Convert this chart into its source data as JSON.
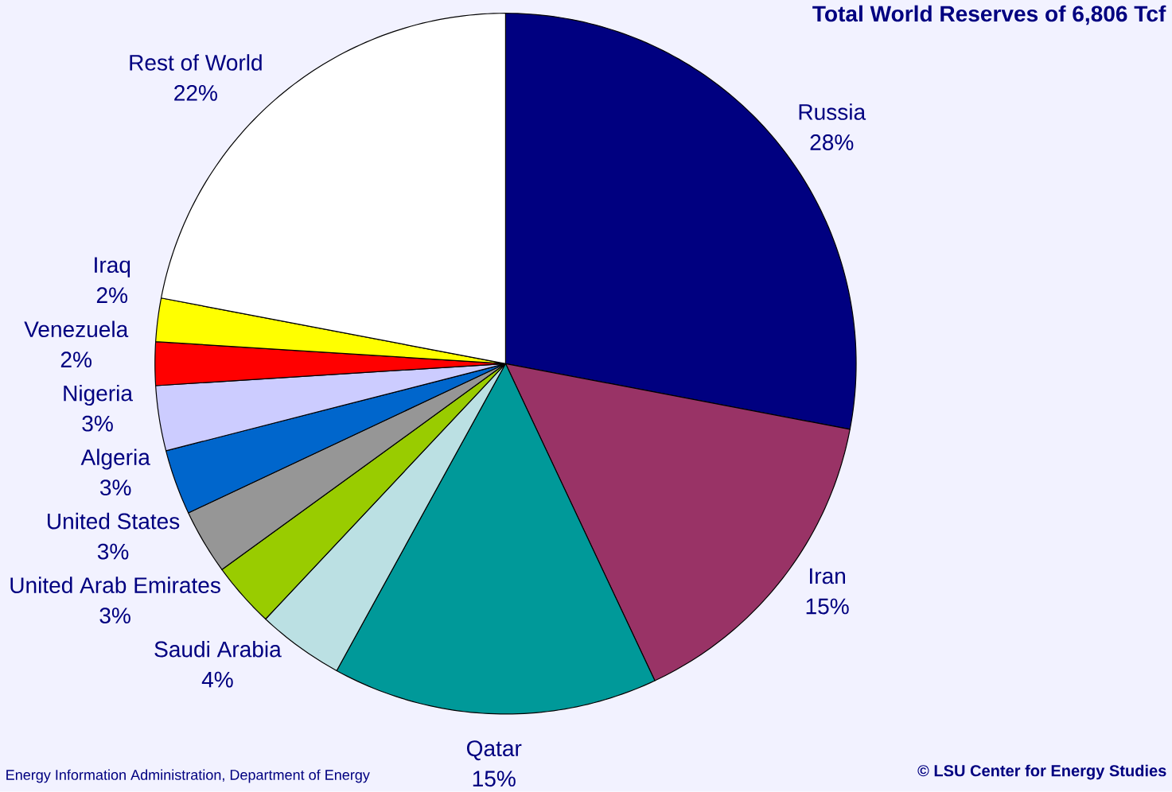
{
  "chart_data": {
    "type": "pie",
    "title": "Total World Reserves of 6,806 Tcf",
    "categories": [
      "Russia",
      "Iran",
      "Qatar",
      "Saudi Arabia",
      "United Arab Emirates",
      "United States",
      "Algeria",
      "Nigeria",
      "Venezuela",
      "Iraq",
      "Rest of World"
    ],
    "values": [
      28,
      15,
      15,
      4,
      3,
      3,
      3,
      3,
      2,
      2,
      22
    ],
    "value_labels": [
      "28%",
      "15%",
      "15%",
      "4%",
      "3%",
      "3%",
      "3%",
      "3%",
      "2%",
      "2%",
      "22%"
    ],
    "colors": [
      "#000080",
      "#993366",
      "#009999",
      "#bbe0e3",
      "#99cc00",
      "#969696",
      "#0066cc",
      "#ccccff",
      "#ff0000",
      "#ffff00",
      "#ffffff"
    ],
    "annotations": [
      "Energy Information Administration, Department of Energy",
      "© LSU Center for Energy Studies"
    ]
  }
}
